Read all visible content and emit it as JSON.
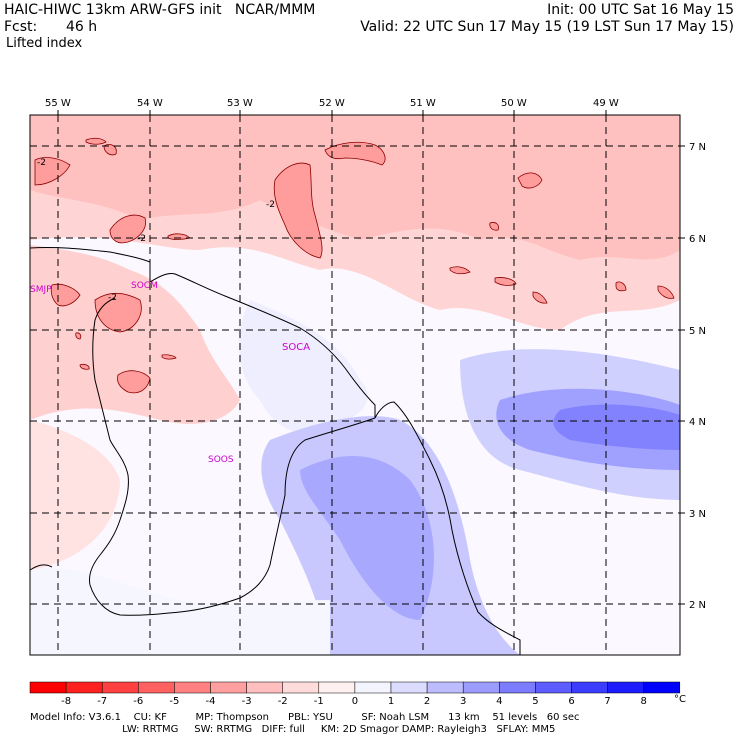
{
  "header": {
    "model_title": "HAIC-HIWC 13km ARW-GFS init   NCAR/MMM",
    "init": "Init: 00 UTC Sat 16 May 15",
    "fcst_label": "Fcst:",
    "fcst_value": "46 h",
    "valid": "Valid: 22 UTC Sun 17 May 15 (19 LST Sun 17 May 15)",
    "field_name": "Lifted index"
  },
  "map": {
    "lon_labels": [
      "55 W",
      "54 W",
      "53 W",
      "52 W",
      "51 W",
      "50 W",
      "49 W"
    ],
    "lat_labels": [
      "7 N",
      "6 N",
      "5 N",
      "4 N",
      "3 N",
      "2 N"
    ],
    "stations": [
      {
        "id": "SMJP",
        "color": "#cc00cc"
      },
      {
        "id": "SOCM",
        "color": "#cc00cc"
      },
      {
        "id": "SOCA",
        "color": "#cc00cc"
      },
      {
        "id": "SOOS",
        "color": "#cc00cc"
      }
    ],
    "contour_labels": [
      "-2",
      "-2",
      "-2",
      "-2"
    ],
    "colors": {
      "coast": "#000000",
      "grid": "#000000",
      "contour": "#8b0000"
    }
  },
  "colorbar": {
    "colors": [
      "#ff0000",
      "#ff2020",
      "#ff4040",
      "#ff6060",
      "#ff8080",
      "#ff9f9f",
      "#ffbfbf",
      "#ffdcdc",
      "#fff0f0",
      "#f4f4ff",
      "#dcdcff",
      "#bcbcff",
      "#9c9cff",
      "#7c7cff",
      "#5c5cff",
      "#3c3cff",
      "#1c1cff",
      "#0000ff"
    ],
    "tick_labels": [
      "-8",
      "-7",
      "-6",
      "-5",
      "-4",
      "-3",
      "-2",
      "-1",
      "0",
      "1",
      "2",
      "3",
      "4",
      "5",
      "6",
      "7",
      "8"
    ],
    "unit": "°C"
  },
  "footer": {
    "line1": "Model Info: V3.6.1    CU: KF         MP: Thompson      PBL: YSU         SF: Noah LSM      13 km    51 levels   60 sec",
    "line2": "                             LW: RRTMG     SW: RRTMG   DIFF: full     KM: 2D Smagor DAMP: Rayleigh3   SFLAY: MM5"
  }
}
